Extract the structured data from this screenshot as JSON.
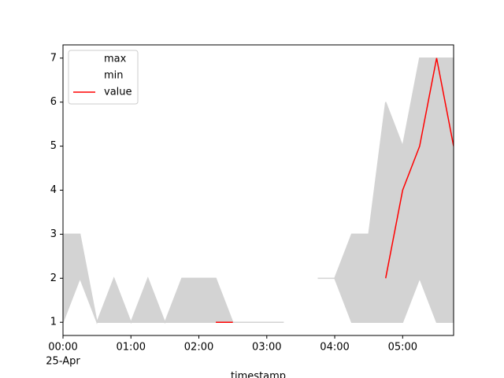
{
  "chart_data": {
    "type": "fill_between",
    "x": [
      "00:00",
      "00:15",
      "00:30",
      "00:45",
      "01:00",
      "01:15",
      "01:30",
      "01:45",
      "02:00",
      "02:15",
      "02:30",
      "02:45",
      "03:00",
      "03:15",
      "03:30",
      "03:45",
      "04:00",
      "04:15",
      "04:30",
      "04:45",
      "05:00",
      "05:15",
      "05:30",
      "05:45"
    ],
    "series": [
      {
        "name": "max",
        "color": "#ffffff",
        "values": [
          3,
          3,
          1,
          2,
          1,
          2,
          1,
          2,
          2,
          2,
          1,
          1,
          1,
          1,
          null,
          2,
          2,
          3,
          3,
          6,
          5,
          7,
          7,
          7
        ]
      },
      {
        "name": "min",
        "color": "#ffffff",
        "values": [
          1,
          2,
          1,
          1,
          1,
          1,
          1,
          1,
          1,
          1,
          1,
          1,
          1,
          1,
          null,
          2,
          2,
          1,
          1,
          1,
          1,
          2,
          1,
          1
        ]
      },
      {
        "name": "value",
        "color": "#ff0000",
        "values": [
          null,
          null,
          null,
          null,
          null,
          null,
          null,
          null,
          null,
          1,
          1,
          null,
          null,
          null,
          null,
          null,
          null,
          null,
          null,
          2,
          4,
          5,
          7,
          5
        ]
      }
    ],
    "fill_color": "#d3d3d3",
    "xlim": [
      "00:00",
      "05:45"
    ],
    "xticks": [
      "00:00",
      "01:00",
      "02:00",
      "03:00",
      "04:00",
      "05:00"
    ],
    "date_label": "25-Apr",
    "ylim": [
      0.7,
      7.3
    ],
    "yticks": [
      1,
      2,
      3,
      4,
      5,
      6,
      7
    ],
    "x_label": "timestamp",
    "legend": "upper left"
  }
}
